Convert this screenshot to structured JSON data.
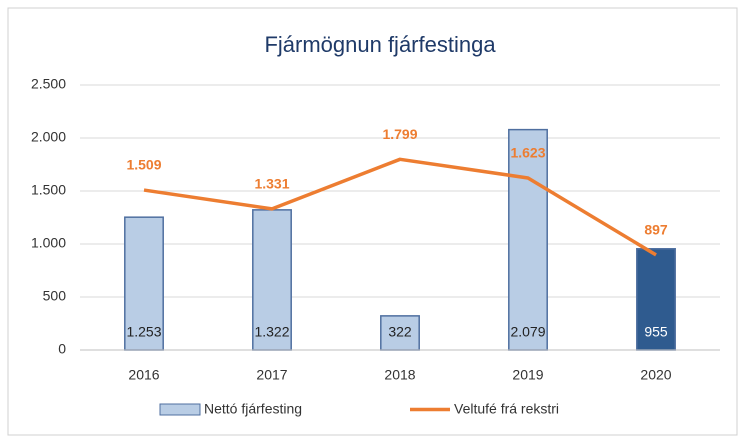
{
  "chart_data": {
    "type": "combo",
    "title": "Fjármögnun fjárfestinga",
    "categories": [
      "2016",
      "2017",
      "2018",
      "2019",
      "2020"
    ],
    "series": [
      {
        "name": "Nettó fjárfesting",
        "type": "bar",
        "color": "#b9cde5",
        "colors": [
          "#b9cde5",
          "#b9cde5",
          "#b9cde5",
          "#b9cde5",
          "#2f5b8f"
        ],
        "border": "#4f6fa0",
        "values": [
          1253,
          1322,
          322,
          2079,
          955
        ],
        "value_labels": [
          "1.253",
          "1.322",
          "322",
          "2.079",
          "955"
        ]
      },
      {
        "name": "Veltufé frá rekstri",
        "type": "line",
        "color": "#ed7d31",
        "values": [
          1509,
          1331,
          1799,
          1623,
          897
        ],
        "value_labels": [
          "1.509",
          "1.331",
          "1.799",
          "1.623",
          "897"
        ]
      }
    ],
    "ylim": [
      0,
      2500
    ],
    "yticks": [
      0,
      500,
      {
        "value": 1000,
        "label": "1.000"
      },
      {
        "value": 1500,
        "label": "1.500"
      },
      {
        "value": 2000,
        "label": "2.000"
      },
      {
        "value": 2500,
        "label": "2.500"
      }
    ],
    "grid": true,
    "legend": "bottom"
  }
}
